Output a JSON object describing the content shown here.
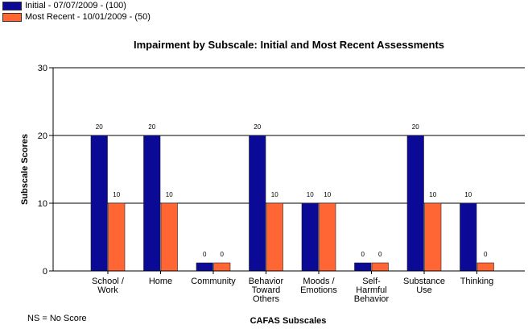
{
  "chart_data": {
    "type": "bar",
    "title": "Impairment by Subscale: Initial and Most Recent Assessments",
    "xlabel": "CAFAS Subscales",
    "ylabel": "Subscale Scores",
    "ylim": [
      0,
      30
    ],
    "yticks": [
      "0",
      "10",
      "20",
      "30"
    ],
    "grid": "horizontal",
    "legend_position": "top-left",
    "categories": [
      [
        "School /",
        "Work"
      ],
      [
        "Home"
      ],
      [
        "Community"
      ],
      [
        "Behavior",
        "Toward",
        "Others"
      ],
      [
        "Moods /",
        "Emotions"
      ],
      [
        "Self-",
        "Harmful",
        "Behavior"
      ],
      [
        "Substance",
        "Use"
      ],
      [
        "Thinking"
      ]
    ],
    "series": [
      {
        "name": "Initial - 07/07/2009 - (100)",
        "color": "#0a0a96",
        "values": [
          20,
          20,
          0,
          20,
          10,
          0,
          20,
          10
        ],
        "labels": [
          "20",
          "20",
          "0",
          "20",
          "10",
          "0",
          "20",
          "10"
        ]
      },
      {
        "name": "Most Recent - 10/01/2009 - (50)",
        "color": "#ff6633",
        "values": [
          10,
          10,
          0,
          10,
          10,
          0,
          10,
          0
        ],
        "labels": [
          "10",
          "10",
          "0",
          "10",
          "10",
          "0",
          "10",
          "0"
        ]
      }
    ]
  },
  "footnote": "NS = No Score"
}
